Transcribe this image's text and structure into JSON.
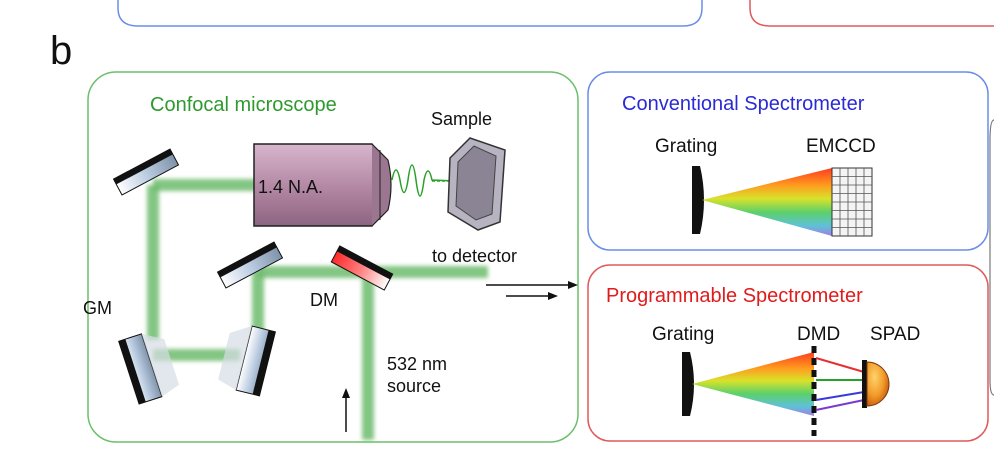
{
  "panel_letter": "b",
  "confocal": {
    "title": "Confocal microscope",
    "objective_label": "1.4 N.A.",
    "sample_label": "Sample",
    "gm_label": "GM",
    "dm_label": "DM",
    "to_detector_label": "to detector",
    "source_line1": "532 nm",
    "source_line2": "source"
  },
  "conventional": {
    "title": "Conventional Spectrometer",
    "grating_label": "Grating",
    "detector_label": "EMCCD"
  },
  "programmable": {
    "title": "Programmable Spectrometer",
    "grating_label": "Grating",
    "dmd_label": "DMD",
    "spad_label": "SPAD"
  },
  "colors": {
    "confocal_title": "#2e9a2e",
    "conventional_title": "#2a2ad6",
    "programmable_title": "#e01b1b",
    "confocal_box": "#6cbf6c",
    "conventional_box": "#6a8ee8",
    "programmable_box": "#e05a5a",
    "beam": "#6dbb6d",
    "objective": "#b58aa6"
  }
}
